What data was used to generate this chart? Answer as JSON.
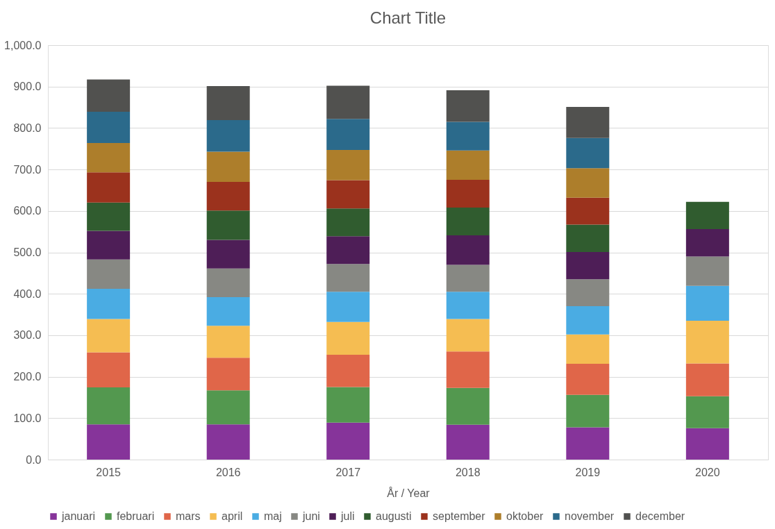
{
  "chart_data": {
    "type": "bar",
    "title": "Chart Title",
    "xlabel": "År / Year",
    "stacked": true,
    "categories": [
      "2015",
      "2016",
      "2017",
      "2018",
      "2019",
      "2020"
    ],
    "series": [
      {
        "name": "januari",
        "color": "#86349a",
        "values": [
          85,
          85,
          89,
          84,
          78,
          76
        ]
      },
      {
        "name": "februari",
        "color": "#53984f",
        "values": [
          89,
          82,
          86,
          89,
          78,
          77
        ]
      },
      {
        "name": "mars",
        "color": "#e06649",
        "values": [
          85,
          79,
          78,
          88,
          75,
          79
        ]
      },
      {
        "name": "april",
        "color": "#f5bd52",
        "values": [
          80,
          77,
          79,
          78,
          71,
          103
        ]
      },
      {
        "name": "maj",
        "color": "#4aace3",
        "values": [
          73,
          69,
          73,
          66,
          68,
          84
        ]
      },
      {
        "name": "juni",
        "color": "#878883",
        "values": [
          71,
          69,
          67,
          65,
          65,
          71
        ]
      },
      {
        "name": "juli",
        "color": "#4e1e57",
        "values": [
          69,
          69,
          67,
          71,
          66,
          66
        ]
      },
      {
        "name": "augusti",
        "color": "#305c2f",
        "values": [
          68,
          71,
          67,
          67,
          66,
          66
        ]
      },
      {
        "name": "september",
        "color": "#9b321d",
        "values": [
          73,
          69,
          68,
          67,
          65,
          null
        ]
      },
      {
        "name": "oktober",
        "color": "#ad7e2b",
        "values": [
          71,
          73,
          73,
          71,
          71,
          null
        ]
      },
      {
        "name": "november",
        "color": "#2b6a8b",
        "values": [
          75,
          76,
          75,
          69,
          73,
          null
        ]
      },
      {
        "name": "december",
        "color": "#51514f",
        "values": [
          78,
          82,
          80,
          76,
          75,
          null
        ]
      }
    ],
    "ylim": [
      0,
      1000
    ],
    "yticks": [
      {
        "value": 0,
        "label": "0.0"
      },
      {
        "value": 100,
        "label": "100.0"
      },
      {
        "value": 200,
        "label": "200.0"
      },
      {
        "value": 300,
        "label": "300.0"
      },
      {
        "value": 400,
        "label": "400.0"
      },
      {
        "value": 500,
        "label": "500.0"
      },
      {
        "value": 600,
        "label": "600.0"
      },
      {
        "value": 700,
        "label": "700.0"
      },
      {
        "value": 800,
        "label": "800.0"
      },
      {
        "value": 900,
        "label": "900.0"
      },
      {
        "value": 1000,
        "label": "1,000.0"
      }
    ],
    "grid": "y",
    "legend": "bottom"
  }
}
